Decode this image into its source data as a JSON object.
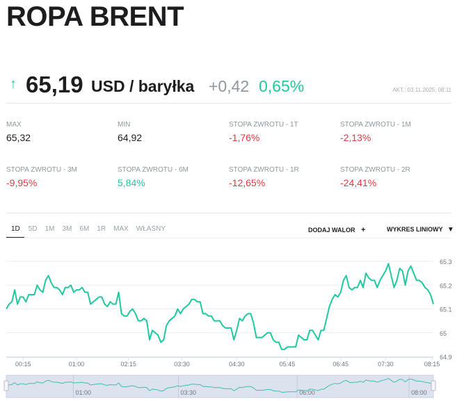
{
  "header": {
    "title": "ROPA BRENT"
  },
  "quote": {
    "direction_icon": "arrow-up-icon",
    "price": "65,19",
    "unit": "USD / baryłka",
    "change": "+0,42",
    "change_percent": "0,65%",
    "updated": "AKT.: 03.11.2025, 08:11"
  },
  "stats": [
    {
      "label": "MAX",
      "value": "65,32",
      "tone": "dark"
    },
    {
      "label": "MIN",
      "value": "64,92",
      "tone": "dark"
    },
    {
      "label": "STOPA ZWROTU - 1T",
      "value": "-1,76%",
      "tone": "red"
    },
    {
      "label": "STOPA ZWROTU - 1M",
      "value": "-2,13%",
      "tone": "red"
    },
    {
      "label": "STOPA ZWROTU - 3M",
      "value": "-9,95%",
      "tone": "red"
    },
    {
      "label": "STOPA ZWROTU - 6M",
      "value": "5,84%",
      "tone": "green"
    },
    {
      "label": "STOPA ZWROTU - 1R",
      "value": "-12,65%",
      "tone": "red"
    },
    {
      "label": "STOPA ZWROTU - 2R",
      "value": "-24,41%",
      "tone": "red"
    }
  ],
  "tabs": [
    {
      "label": "1D",
      "active": true
    },
    {
      "label": "5D"
    },
    {
      "label": "1M"
    },
    {
      "label": "3M"
    },
    {
      "label": "6M"
    },
    {
      "label": "1R"
    },
    {
      "label": "MAX"
    },
    {
      "label": "WŁASNY"
    }
  ],
  "toolbar": {
    "add_label": "DODAJ WALOR",
    "add_icon": "plus-icon",
    "chart_type_label": "WYKRES LINIOWY",
    "chart_type_icon": "triangle-down-icon"
  },
  "colors": {
    "up": "#1ec8a0",
    "down": "#e4393f",
    "line": "#1ec8a0",
    "navigator_bg": "#dde2ef"
  },
  "chart_data": {
    "type": "line",
    "title": "",
    "xlabel": "",
    "ylabel": "",
    "ylim": [
      64.9,
      65.3
    ],
    "y_ticks": [
      "65.3",
      "65.2",
      "65.1",
      "65",
      "64.9"
    ],
    "y_tick_values": [
      65.3,
      65.2,
      65.1,
      65.0,
      64.9
    ],
    "grid": true,
    "x_ticks": [
      {
        "label": "00:15",
        "index": 6
      },
      {
        "label": "01:00",
        "index": 25
      },
      {
        "label": "02:15",
        "index": 43.5
      },
      {
        "label": "03:30",
        "index": 62.5
      },
      {
        "label": "04:30",
        "index": 82
      },
      {
        "label": "05:45",
        "index": 100
      },
      {
        "label": "06:45",
        "index": 119
      },
      {
        "label": "07:30",
        "index": 135
      },
      {
        "label": "08:15",
        "index": 151.5
      }
    ],
    "values": [
      65.1,
      65.12,
      65.13,
      65.18,
      65.12,
      65.15,
      65.15,
      65.13,
      65.16,
      65.16,
      65.16,
      65.2,
      65.18,
      65.17,
      65.22,
      65.24,
      65.21,
      65.19,
      65.19,
      65.18,
      65.16,
      65.19,
      65.19,
      65.2,
      65.17,
      65.18,
      65.18,
      65.19,
      65.17,
      65.17,
      65.12,
      65.13,
      65.14,
      65.15,
      65.15,
      65.12,
      65.11,
      65.13,
      65.12,
      65.12,
      65.17,
      65.08,
      65.07,
      65.07,
      65.09,
      65.1,
      65.08,
      65.05,
      65.05,
      65.06,
      65.05,
      64.97,
      65.01,
      65.0,
      64.99,
      64.96,
      64.97,
      65.03,
      65.05,
      65.06,
      65.07,
      65.1,
      65.08,
      65.1,
      65.11,
      65.12,
      65.14,
      65.14,
      65.13,
      65.13,
      65.08,
      65.08,
      65.07,
      65.07,
      65.05,
      65.05,
      65.05,
      65.03,
      65.02,
      65.02,
      65.02,
      64.97,
      65.01,
      65.06,
      65.05,
      65.07,
      65.08,
      65.08,
      65.04,
      64.98,
      64.98,
      64.98,
      64.99,
      65.0,
      65.0,
      64.97,
      64.96,
      64.96,
      64.93,
      64.93,
      64.94,
      64.94,
      64.94,
      64.94,
      64.99,
      64.98,
      64.97,
      64.97,
      65.01,
      65.01,
      64.99,
      64.97,
      65.01,
      65.01,
      65.06,
      65.11,
      65.14,
      65.16,
      65.15,
      65.17,
      65.22,
      65.24,
      65.19,
      65.18,
      65.19,
      65.19,
      65.22,
      65.19,
      65.25,
      65.23,
      65.22,
      65.22,
      65.19,
      65.22,
      65.24,
      65.26,
      65.29,
      65.24,
      65.19,
      65.22,
      65.27,
      65.26,
      65.2,
      65.26,
      65.28,
      65.25,
      65.22,
      65.22,
      65.21,
      65.19,
      65.18,
      65.16,
      65.12
    ],
    "navigator": {
      "labels": [
        {
          "label": "01:00",
          "fraction": 0.162
        },
        {
          "label": "03:30",
          "fraction": 0.408
        },
        {
          "label": "06:00",
          "fraction": 0.686
        },
        {
          "label": "08:00",
          "fraction": 0.948
        }
      ]
    }
  }
}
